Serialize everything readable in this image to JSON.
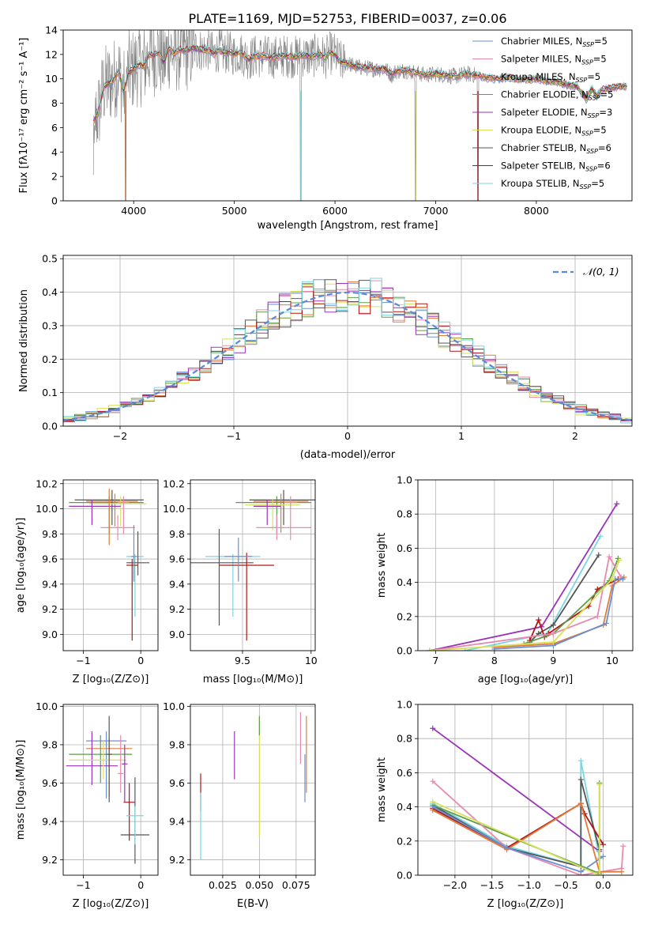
{
  "figure": {
    "title": "PLATE=1169, MJD=52753, FIBERID=0037, z=0.06"
  },
  "colors": {
    "chabrier_miles": "#6a8fd6",
    "salpeter_miles": "#e88ab0",
    "kroupa_miles": "#e07b39",
    "chabrier_elodie": "#5f9d4a",
    "salpeter_elodie": "#9b33b8",
    "kroupa_elodie": "#d6e05a",
    "chabrier_stelib": "#555555",
    "salpeter_stelib": "#b01717",
    "kroupa_stelib": "#7ad6e0",
    "data_grey": "#808080",
    "normal_dashed": "#5b8ad6"
  },
  "chart_data": [
    {
      "id": "spectrum",
      "type": "line",
      "xlabel": "wavelength [Angstrom, rest frame]",
      "ylabel": "Flux [fλ10⁻¹⁷ erg cm⁻² s⁻¹ A⁻¹]",
      "xlim": [
        3300,
        8950
      ],
      "ylim": [
        0,
        14
      ],
      "xticks": [
        4000,
        5000,
        6000,
        7000,
        8000
      ],
      "yticks": [
        0,
        2,
        4,
        6,
        8,
        10,
        12,
        14
      ],
      "legend_position": "right",
      "series": [
        {
          "name": "Chabrier MILES, N",
          "nssp": "5"
        },
        {
          "name": "Salpeter MILES, N",
          "nssp": "5"
        },
        {
          "name": "Kroupa MILES, N",
          "nssp": "5"
        },
        {
          "name": "Chabrier ELODIE, N",
          "nssp": "5"
        },
        {
          "name": "Salpeter ELODIE, N",
          "nssp": "3"
        },
        {
          "name": "Kroupa ELODIE, N",
          "nssp": "5"
        },
        {
          "name": "Chabrier STELIB, N",
          "nssp": "6"
        },
        {
          "name": "Salpeter STELIB, N",
          "nssp": "6"
        },
        {
          "name": "Kroupa STELIB, N",
          "nssp": "5"
        }
      ],
      "legend_subscript": "SSP",
      "model_continuum": [
        [
          3600,
          6.5
        ],
        [
          3650,
          7.2
        ],
        [
          3700,
          9.3
        ],
        [
          3750,
          9.6
        ],
        [
          3800,
          9.9
        ],
        [
          3850,
          10.6
        ],
        [
          3900,
          9.0
        ],
        [
          3950,
          10.5
        ],
        [
          4000,
          10.8
        ],
        [
          4050,
          11.2
        ],
        [
          4100,
          11.0
        ],
        [
          4150,
          12.0
        ],
        [
          4200,
          11.9
        ],
        [
          4250,
          12.2
        ],
        [
          4300,
          11.3
        ],
        [
          4350,
          12.5
        ],
        [
          4400,
          12.0
        ],
        [
          4450,
          12.4
        ],
        [
          4500,
          12.3
        ],
        [
          4550,
          12.4
        ],
        [
          4600,
          12.5
        ],
        [
          4650,
          12.4
        ],
        [
          4700,
          12.3
        ],
        [
          4750,
          12.4
        ],
        [
          4800,
          12.0
        ],
        [
          4850,
          12.4
        ],
        [
          4900,
          12.1
        ],
        [
          4950,
          12.2
        ],
        [
          5000,
          12.0
        ],
        [
          5050,
          12.2
        ],
        [
          5100,
          11.9
        ],
        [
          5150,
          11.6
        ],
        [
          5200,
          11.9
        ],
        [
          5250,
          11.8
        ],
        [
          5300,
          11.9
        ],
        [
          5350,
          11.7
        ],
        [
          5400,
          11.8
        ],
        [
          5450,
          11.8
        ],
        [
          5500,
          11.9
        ],
        [
          5550,
          11.8
        ],
        [
          5600,
          11.8
        ],
        [
          5650,
          11.9
        ],
        [
          5700,
          11.9
        ],
        [
          5750,
          11.8
        ],
        [
          5800,
          11.9
        ],
        [
          5850,
          12.0
        ],
        [
          5900,
          11.7
        ],
        [
          5950,
          12.1
        ],
        [
          6000,
          12.0
        ],
        [
          6050,
          11.4
        ],
        [
          6100,
          11.3
        ],
        [
          6150,
          11.2
        ],
        [
          6200,
          11.0
        ],
        [
          6300,
          10.9
        ],
        [
          6400,
          10.8
        ],
        [
          6500,
          10.8
        ],
        [
          6563,
          10.3
        ],
        [
          6600,
          10.6
        ],
        [
          6700,
          10.7
        ],
        [
          6800,
          10.5
        ],
        [
          6900,
          10.3
        ],
        [
          7000,
          10.4
        ],
        [
          7100,
          10.3
        ],
        [
          7200,
          10.2
        ],
        [
          7300,
          10.4
        ],
        [
          7400,
          10.3
        ],
        [
          7500,
          10.1
        ],
        [
          7600,
          10.0
        ],
        [
          7700,
          10.1
        ],
        [
          7800,
          10.0
        ],
        [
          7900,
          9.9
        ],
        [
          8000,
          10.0
        ],
        [
          8100,
          9.8
        ],
        [
          8200,
          9.8
        ],
        [
          8300,
          9.5
        ],
        [
          8400,
          9.4
        ],
        [
          8500,
          8.3
        ],
        [
          8550,
          9.2
        ],
        [
          8600,
          8.6
        ],
        [
          8650,
          9.1
        ],
        [
          8700,
          9.2
        ],
        [
          8800,
          9.3
        ],
        [
          8900,
          9.4
        ]
      ],
      "noise_region": [
        3600,
        7420
      ],
      "dropouts": [
        3920,
        5660,
        6800,
        7420
      ]
    },
    {
      "id": "residuals",
      "type": "line",
      "xlabel": "(data-model)/error",
      "ylabel": "Normed distribution",
      "xlim": [
        -2.5,
        2.5
      ],
      "ylim": [
        0,
        0.51
      ],
      "xticks": [
        -2,
        -1,
        0,
        1,
        2
      ],
      "yticks": [
        0.0,
        0.1,
        0.2,
        0.3,
        0.4,
        0.5
      ],
      "legend_position": "top-right",
      "legend_label": "𝒩(0, 1)",
      "grid": true,
      "bin_width": 0.1
    },
    {
      "id": "age_vs_Z",
      "type": "scatter",
      "xlabel": "Z [log₁₀(Z/Z⊙)]",
      "ylabel": "age  [log₁₀(age/yr)]",
      "xlim": [
        -1.35,
        0.3
      ],
      "ylim": [
        8.87,
        10.23
      ],
      "xticks": [
        -1,
        0
      ],
      "xticklabels": [
        "−1",
        "0"
      ],
      "yticks": [
        9.0,
        9.2,
        9.4,
        9.6,
        9.8,
        10.0,
        10.2
      ],
      "grid": true
    },
    {
      "id": "age_vs_mass",
      "type": "scatter",
      "xlabel": "mass [log₁₀(M/M⊙)]",
      "xlim": [
        9.12,
        10.03
      ],
      "ylim": [
        8.87,
        10.23
      ],
      "xticks": [
        9.5,
        10.0
      ],
      "yticks": [
        9.0,
        9.2,
        9.4,
        9.6,
        9.8,
        10.0,
        10.2
      ],
      "grid": true
    },
    {
      "id": "weight_vs_age",
      "type": "line",
      "xlabel": "age  [log₁₀(age/yr)]",
      "ylabel": "mass weight",
      "xlim": [
        6.7,
        10.35
      ],
      "ylim": [
        0,
        1
      ],
      "xticks": [
        7,
        8,
        9,
        10
      ],
      "yticks": [
        0.0,
        0.2,
        0.4,
        0.6,
        0.8,
        1.0
      ],
      "grid": true,
      "series": [
        {
          "key": "salpeter_elodie",
          "points": [
            [
              6.9,
              0.0
            ],
            [
              8.8,
              0.14
            ],
            [
              10.08,
              0.86
            ]
          ]
        },
        {
          "key": "kroupa_stelib",
          "points": [
            [
              7.5,
              0.0
            ],
            [
              8.9,
              0.1
            ],
            [
              9.8,
              0.67
            ]
          ]
        },
        {
          "key": "chabrier_stelib",
          "points": [
            [
              8.6,
              0.05
            ],
            [
              8.75,
              0.1
            ],
            [
              9.0,
              0.15
            ],
            [
              9.77,
              0.56
            ]
          ]
        },
        {
          "key": "salpeter_stelib",
          "points": [
            [
              8.6,
              0.06
            ],
            [
              8.75,
              0.18
            ],
            [
              8.85,
              0.08
            ],
            [
              8.92,
              0.1
            ],
            [
              9.6,
              0.26
            ],
            [
              9.75,
              0.36
            ],
            [
              10.1,
              0.42
            ]
          ]
        },
        {
          "key": "chabrier_elodie",
          "points": [
            [
              8.5,
              0.04
            ],
            [
              9.0,
              0.1
            ],
            [
              9.95,
              0.41
            ],
            [
              10.1,
              0.54
            ]
          ]
        },
        {
          "key": "salpeter_miles",
          "points": [
            [
              6.9,
              0.0
            ],
            [
              9.0,
              0.1
            ],
            [
              9.75,
              0.2
            ],
            [
              9.95,
              0.55
            ],
            [
              10.15,
              0.43
            ]
          ]
        },
        {
          "key": "kroupa_miles",
          "points": [
            [
              8.0,
              0.02
            ],
            [
              9.0,
              0.04
            ],
            [
              9.85,
              0.15
            ],
            [
              10.0,
              0.38
            ],
            [
              10.2,
              0.43
            ]
          ]
        },
        {
          "key": "chabrier_miles",
          "points": [
            [
              8.0,
              0.01
            ],
            [
              9.0,
              0.03
            ],
            [
              9.9,
              0.16
            ],
            [
              10.05,
              0.42
            ],
            [
              10.18,
              0.42
            ]
          ]
        },
        {
          "key": "kroupa_elodie",
          "points": [
            [
              6.9,
              0.0
            ],
            [
              9.0,
              0.05
            ],
            [
              10.0,
              0.42
            ],
            [
              10.12,
              0.53
            ]
          ]
        }
      ]
    },
    {
      "id": "mass_vs_Z",
      "type": "scatter",
      "xlabel": "Z [log₁₀(Z/Z⊙)]",
      "ylabel": "mass [log₁₀(M/M⊙)]",
      "xlim": [
        -1.35,
        0.3
      ],
      "ylim": [
        9.12,
        10.01
      ],
      "xticks": [
        -1,
        0
      ],
      "xticklabels": [
        "−1",
        "0"
      ],
      "yticks": [
        9.2,
        9.4,
        9.6,
        9.8,
        10.0
      ],
      "grid": true
    },
    {
      "id": "mass_vs_ebv",
      "type": "scatter",
      "xlabel": "E(B-V)",
      "xlim": [
        0.003,
        0.088
      ],
      "ylim": [
        9.12,
        10.01
      ],
      "xticks": [
        0.025,
        0.05,
        0.075
      ],
      "xticklabels": [
        "0.025",
        "0.050",
        "0.075"
      ],
      "yticks": [
        9.2,
        9.4,
        9.6,
        9.8,
        10.0
      ],
      "grid": true
    },
    {
      "id": "weight_vs_Z",
      "type": "line",
      "xlabel": "Z [log₁₀(Z/Z⊙)]",
      "ylabel": "mass weight",
      "xlim": [
        -2.5,
        0.4
      ],
      "ylim": [
        0,
        1
      ],
      "xticks": [
        -2.0,
        -1.5,
        -1.0,
        -0.5,
        0.0
      ],
      "xticklabels": [
        "−2.0",
        "−1.5",
        "−1.0",
        "−0.5",
        "0.0"
      ],
      "yticks": [
        0.0,
        0.2,
        0.4,
        0.6,
        0.8,
        1.0
      ],
      "grid": true,
      "series": [
        {
          "key": "salpeter_elodie",
          "points": [
            [
              -2.3,
              0.86
            ],
            [
              -0.05,
              0.14
            ]
          ]
        },
        {
          "key": "kroupa_stelib",
          "points": [
            [
              -2.3,
              0.42
            ],
            [
              -1.3,
              0.17
            ],
            [
              -0.3,
              0.05
            ],
            [
              -0.3,
              0.67
            ],
            [
              -0.05,
              0.1
            ]
          ]
        },
        {
          "key": "chabrier_stelib",
          "points": [
            [
              -2.3,
              0.41
            ],
            [
              -1.3,
              0.16
            ],
            [
              -0.3,
              0.05
            ],
            [
              -0.3,
              0.56
            ],
            [
              -0.05,
              0.15
            ]
          ]
        },
        {
          "key": "salpeter_stelib",
          "points": [
            [
              -2.3,
              0.39
            ],
            [
              -1.3,
              0.16
            ],
            [
              -0.3,
              0.42
            ],
            [
              -0.25,
              0.36
            ],
            [
              0.0,
              0.18
            ]
          ]
        },
        {
          "key": "chabrier_elodie",
          "points": [
            [
              -2.3,
              0.41
            ],
            [
              -0.05,
              0.01
            ],
            [
              -0.05,
              0.54
            ]
          ]
        },
        {
          "key": "salpeter_miles",
          "points": [
            [
              -2.3,
              0.55
            ],
            [
              -1.3,
              0.16
            ],
            [
              -0.3,
              0.0
            ],
            [
              0.25,
              0.04
            ],
            [
              0.27,
              0.17
            ]
          ]
        },
        {
          "key": "kroupa_miles",
          "points": [
            [
              -2.3,
              0.38
            ],
            [
              -1.3,
              0.15
            ],
            [
              -0.3,
              0.42
            ],
            [
              -0.05,
              0.02
            ],
            [
              0.25,
              0.02
            ]
          ]
        },
        {
          "key": "chabrier_miles",
          "points": [
            [
              -2.3,
              0.4
            ],
            [
              -1.3,
              0.16
            ],
            [
              -0.3,
              0.02
            ],
            [
              0.0,
              0.11
            ]
          ]
        },
        {
          "key": "kroupa_elodie",
          "points": [
            [
              -2.3,
              0.43
            ],
            [
              -0.05,
              0.0
            ],
            [
              -0.05,
              0.53
            ]
          ]
        }
      ]
    }
  ]
}
